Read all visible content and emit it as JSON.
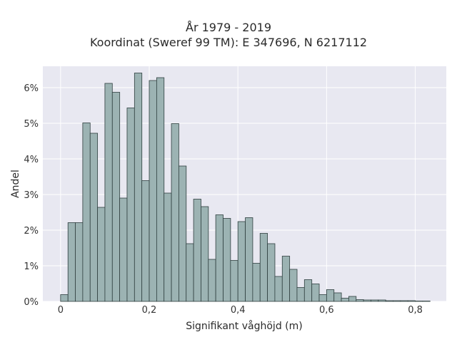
{
  "chart_data": {
    "type": "bar",
    "title": "År 1979 - 2019",
    "subtitle": "Koordinat (Sweref 99 TM): E 347696, N 6217112",
    "xlabel": "Signifikant våghöjd (m)",
    "ylabel": "Andel",
    "bin_width": 0.0167,
    "xlim": [
      -0.04,
      0.87
    ],
    "ylim": [
      0,
      0.066
    ],
    "x_ticks": [
      0,
      0.2,
      0.4,
      0.6,
      0.8
    ],
    "x_tick_labels": [
      "0",
      "0,2",
      "0,4",
      "0,6",
      "0,8"
    ],
    "y_ticks": [
      0,
      0.01,
      0.02,
      0.03,
      0.04,
      0.05,
      0.06
    ],
    "y_tick_labels": [
      "0%",
      "1%",
      "2%",
      "3%",
      "4%",
      "5%",
      "6%"
    ],
    "grid": true,
    "bar_color": "#9cb3b3",
    "bar_edge_color": "#2f3f3f",
    "plot_background": "#e8e8f1",
    "bin_starts": [
      0,
      0.0167,
      0.0333,
      0.05,
      0.0667,
      0.0833,
      0.1,
      0.1167,
      0.1333,
      0.15,
      0.1667,
      0.1833,
      0.2,
      0.2167,
      0.2333,
      0.25,
      0.2667,
      0.2833,
      0.3,
      0.3167,
      0.3333,
      0.35,
      0.3667,
      0.3833,
      0.4,
      0.4167,
      0.4333,
      0.45,
      0.4667,
      0.4833,
      0.5,
      0.5167,
      0.5333,
      0.55,
      0.5667,
      0.5833,
      0.6,
      0.6167,
      0.6333,
      0.65,
      0.6667,
      0.6833,
      0.7,
      0.7167,
      0.7333,
      0.75,
      0.7667,
      0.7833,
      0.8,
      0.8167
    ],
    "values": [
      0.0019,
      0.0221,
      0.0221,
      0.0501,
      0.0472,
      0.0264,
      0.0612,
      0.0587,
      0.029,
      0.0543,
      0.0641,
      0.0339,
      0.062,
      0.0628,
      0.0304,
      0.0499,
      0.038,
      0.0162,
      0.0287,
      0.0266,
      0.0118,
      0.0243,
      0.0233,
      0.0115,
      0.0224,
      0.0235,
      0.0107,
      0.0191,
      0.0162,
      0.007,
      0.0127,
      0.009,
      0.0039,
      0.0061,
      0.0049,
      0.0019,
      0.0033,
      0.0024,
      0.0009,
      0.0014,
      0.0005,
      0.0004,
      0.0004,
      0.0004,
      0.0002,
      0.0002,
      0.0002,
      0.0002,
      0.0001,
      0.0001
    ]
  }
}
